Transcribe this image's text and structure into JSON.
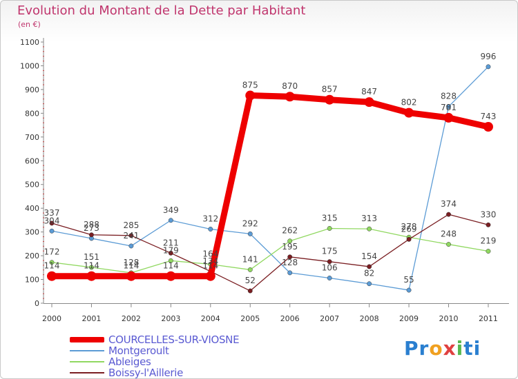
{
  "title": "Evolution du Montant de la Dette par Habitant",
  "unit_label": "(en €)",
  "logo": {
    "parts": [
      "Pr",
      "o",
      "x",
      "i",
      "ti"
    ],
    "colors": [
      "#2a7fd0",
      "#f0a020",
      "#e04040",
      "#58b850",
      "#2a7fd0"
    ]
  },
  "chart_data": {
    "type": "line",
    "title": "Evolution du Montant de la Dette par Habitant",
    "ylabel": "(en €)",
    "x": [
      "2000",
      "2001",
      "2002",
      "2003",
      "2004",
      "2005",
      "2006",
      "2007",
      "2008",
      "2009",
      "2010",
      "2011"
    ],
    "ylim": [
      0,
      1100
    ],
    "yticks": [
      0,
      100,
      200,
      300,
      400,
      500,
      600,
      700,
      800,
      900,
      1000,
      1100
    ],
    "grid": false,
    "legend": "bottom-left",
    "series": [
      {
        "name": "COURCELLES-SUR-VIOSNE",
        "color": "#ee0000",
        "values": [
          114,
          114,
          114,
          114,
          114,
          875,
          870,
          857,
          847,
          802,
          781,
          743
        ]
      },
      {
        "name": "Montgeroult",
        "color": "#5b9bd5",
        "values": [
          304,
          273,
          241,
          349,
          312,
          292,
          128,
          106,
          82,
          55,
          828,
          996
        ]
      },
      {
        "name": "Ableiges",
        "color": "#90d860",
        "values": [
          172,
          151,
          128,
          179,
          164,
          141,
          262,
          315,
          313,
          278,
          248,
          219
        ]
      },
      {
        "name": "Boissy-l'Aillerie",
        "color": "#7a1e22",
        "values": [
          337,
          288,
          285,
          211,
          134,
          52,
          195,
          175,
          154,
          269,
          374,
          330
        ]
      }
    ]
  }
}
